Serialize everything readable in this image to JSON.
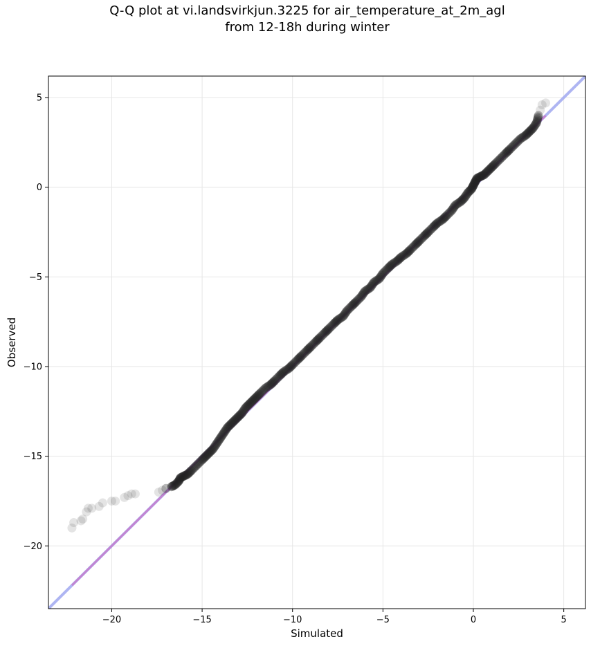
{
  "chart_data": {
    "type": "scatter",
    "title": "Q-Q plot at vi.landsvirkjun.3225 for air_temperature_at_2m_agl",
    "subtitle": "from 12-18h during winter",
    "xlabel": "Simulated",
    "ylabel": "Observed",
    "xlim": [
      -23.5,
      6.2
    ],
    "ylim": [
      -23.5,
      6.2
    ],
    "xticks": [
      -20,
      -15,
      -10,
      -5,
      0,
      5
    ],
    "yticks": [
      -20,
      -15,
      -10,
      -5,
      0,
      5
    ],
    "xtick_labels": [
      "−20",
      "−15",
      "−10",
      "−5",
      "0",
      "5"
    ],
    "ytick_labels": [
      "−20",
      "−15",
      "−10",
      "−5",
      "0",
      "5"
    ],
    "grid": true,
    "reference_line": {
      "color": "#a0a8f0",
      "x": [
        -23.5,
        6.2
      ],
      "y": [
        -23.5,
        6.2
      ]
    },
    "fit_line": {
      "color": "#c878c8",
      "x": [
        -22.2,
        4.0
      ],
      "y": [
        -22.2,
        4.0
      ]
    },
    "marker_color": "#222222",
    "series": [
      {
        "x": [
          -22.2,
          -22.1,
          -21.7,
          -21.6,
          -21.4,
          -21.3,
          -21.1,
          -20.7,
          -20.5,
          -20.0,
          -19.8,
          -19.3,
          -19.1,
          -18.9,
          -18.7,
          -17.4,
          -17.2,
          -17.0,
          -16.7,
          -16.5,
          -16.3,
          -16.2,
          -16.0,
          -15.8,
          -15.6,
          -15.3,
          -15.0,
          -14.8,
          -14.6,
          -14.4,
          -14.2,
          -14.0,
          -13.8,
          -13.6,
          -13.4,
          -13.2,
          -13.0,
          -12.8,
          -12.6,
          -12.4,
          -12.2,
          -12.0,
          -11.8,
          -11.5,
          -11.2,
          -11.0,
          -10.7,
          -10.5,
          -10.2,
          -10.0,
          -9.7,
          -9.5,
          -9.2,
          -9.0,
          -8.7,
          -8.5,
          -8.2,
          -8.0,
          -7.7,
          -7.5,
          -7.2,
          -7.0,
          -6.7,
          -6.5,
          -6.2,
          -6.0,
          -5.7,
          -5.5,
          -5.2,
          -5.0,
          -4.7,
          -4.5,
          -4.2,
          -4.0,
          -3.7,
          -3.5,
          -3.2,
          -3.0,
          -2.7,
          -2.5,
          -2.2,
          -2.0,
          -1.7,
          -1.5,
          -1.2,
          -1.0,
          -0.7,
          -0.5,
          -0.3,
          -0.1,
          0.0,
          0.1,
          0.2,
          0.4,
          0.6,
          0.8,
          1.0,
          1.2,
          1.5,
          1.8,
          2.0,
          2.3,
          2.6,
          2.9,
          3.1,
          3.3,
          3.5,
          3.6,
          3.7,
          3.8,
          4.0
        ],
        "y": [
          -19.0,
          -18.7,
          -18.6,
          -18.5,
          -18.1,
          -17.9,
          -17.9,
          -17.8,
          -17.6,
          -17.5,
          -17.5,
          -17.3,
          -17.2,
          -17.1,
          -17.1,
          -17.0,
          -16.9,
          -16.8,
          -16.7,
          -16.6,
          -16.4,
          -16.2,
          -16.1,
          -16.0,
          -15.8,
          -15.5,
          -15.2,
          -15.0,
          -14.8,
          -14.6,
          -14.3,
          -14.0,
          -13.7,
          -13.4,
          -13.2,
          -13.0,
          -12.8,
          -12.6,
          -12.3,
          -12.1,
          -11.9,
          -11.7,
          -11.5,
          -11.2,
          -11.0,
          -10.8,
          -10.5,
          -10.3,
          -10.1,
          -9.9,
          -9.6,
          -9.4,
          -9.1,
          -8.9,
          -8.6,
          -8.4,
          -8.1,
          -7.9,
          -7.6,
          -7.4,
          -7.2,
          -6.9,
          -6.6,
          -6.4,
          -6.1,
          -5.8,
          -5.6,
          -5.3,
          -5.1,
          -4.8,
          -4.5,
          -4.3,
          -4.1,
          -3.9,
          -3.7,
          -3.5,
          -3.2,
          -3.0,
          -2.7,
          -2.5,
          -2.2,
          -2.0,
          -1.8,
          -1.6,
          -1.3,
          -1.0,
          -0.8,
          -0.6,
          -0.3,
          -0.1,
          0.1,
          0.3,
          0.5,
          0.6,
          0.7,
          0.9,
          1.1,
          1.3,
          1.6,
          1.9,
          2.1,
          2.4,
          2.7,
          2.9,
          3.1,
          3.3,
          3.6,
          4.0,
          4.3,
          4.6,
          4.7
        ]
      }
    ]
  }
}
